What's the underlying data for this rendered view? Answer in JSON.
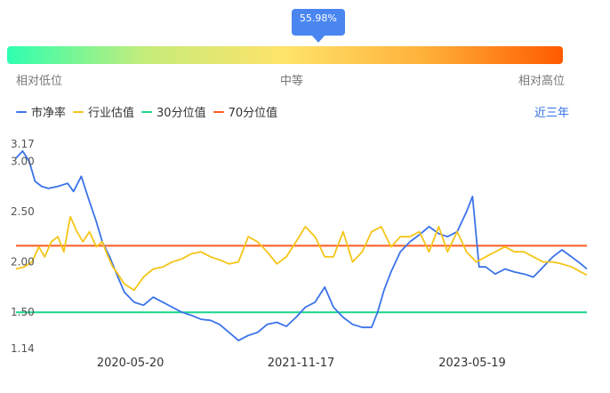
{
  "gauge": {
    "percentile_label": "55.98%",
    "percentile": 0.5598,
    "low_label": "相对低位",
    "mid_label": "中等",
    "high_label": "相对高位",
    "colors": [
      "#2effb0",
      "#c6ec7a",
      "#ffe36a",
      "#ffb13a",
      "#ff5a00"
    ]
  },
  "legend": {
    "items": [
      {
        "label": "市净率",
        "color": "#3b73e8"
      },
      {
        "label": "行业估值",
        "color": "#f5c518"
      },
      {
        "label": "30分位值",
        "color": "#19d68a"
      },
      {
        "label": "70分位值",
        "color": "#ff5a1f"
      }
    ]
  },
  "range_selector": {
    "label": "近三年"
  },
  "chart_data": {
    "type": "line",
    "x_ticks": [
      "2020-05-20",
      "2021-11-17",
      "2023-05-19"
    ],
    "x_range": [
      "2019-05-20",
      "2024-05-20"
    ],
    "y_ticks": [
      "3.17",
      "3.00",
      "2.50",
      "2.00",
      "1.50",
      "1.14"
    ],
    "ylim": [
      1.14,
      3.17
    ],
    "grid": false,
    "series": [
      {
        "name": "市净率",
        "color": "#3b73e8",
        "points": [
          [
            "2019-05-20",
            3.03
          ],
          [
            "2019-06-10",
            3.1
          ],
          [
            "2019-07-01",
            3.0
          ],
          [
            "2019-07-20",
            2.8
          ],
          [
            "2019-08-10",
            2.75
          ],
          [
            "2019-09-01",
            2.73
          ],
          [
            "2019-10-01",
            2.75
          ],
          [
            "2019-11-01",
            2.78
          ],
          [
            "2019-11-20",
            2.7
          ],
          [
            "2019-12-15",
            2.85
          ],
          [
            "2020-01-10",
            2.6
          ],
          [
            "2020-02-01",
            2.4
          ],
          [
            "2020-02-20",
            2.2
          ],
          [
            "2020-03-15",
            2.05
          ],
          [
            "2020-04-10",
            1.85
          ],
          [
            "2020-05-01",
            1.7
          ],
          [
            "2020-06-01",
            1.6
          ],
          [
            "2020-07-01",
            1.57
          ],
          [
            "2020-08-01",
            1.65
          ],
          [
            "2020-09-01",
            1.6
          ],
          [
            "2020-10-01",
            1.55
          ],
          [
            "2020-11-01",
            1.5
          ],
          [
            "2020-12-01",
            1.47
          ],
          [
            "2021-01-01",
            1.43
          ],
          [
            "2021-02-01",
            1.42
          ],
          [
            "2021-03-01",
            1.38
          ],
          [
            "2021-04-01",
            1.3
          ],
          [
            "2021-05-01",
            1.22
          ],
          [
            "2021-06-01",
            1.27
          ],
          [
            "2021-07-01",
            1.3
          ],
          [
            "2021-08-01",
            1.38
          ],
          [
            "2021-09-01",
            1.4
          ],
          [
            "2021-10-01",
            1.36
          ],
          [
            "2021-11-01",
            1.45
          ],
          [
            "2021-12-01",
            1.55
          ],
          [
            "2022-01-01",
            1.6
          ],
          [
            "2022-02-01",
            1.75
          ],
          [
            "2022-03-01",
            1.55
          ],
          [
            "2022-04-01",
            1.45
          ],
          [
            "2022-05-01",
            1.38
          ],
          [
            "2022-06-01",
            1.35
          ],
          [
            "2022-07-01",
            1.35
          ],
          [
            "2022-07-20",
            1.5
          ],
          [
            "2022-08-10",
            1.72
          ],
          [
            "2022-09-01",
            1.9
          ],
          [
            "2022-10-01",
            2.1
          ],
          [
            "2022-11-01",
            2.2
          ],
          [
            "2022-12-01",
            2.27
          ],
          [
            "2023-01-01",
            2.35
          ],
          [
            "2023-02-01",
            2.28
          ],
          [
            "2023-03-01",
            2.25
          ],
          [
            "2023-04-01",
            2.3
          ],
          [
            "2023-05-01",
            2.5
          ],
          [
            "2023-05-20",
            2.65
          ],
          [
            "2023-06-10",
            1.95
          ],
          [
            "2023-07-01",
            1.95
          ],
          [
            "2023-08-01",
            1.88
          ],
          [
            "2023-09-01",
            1.93
          ],
          [
            "2023-10-01",
            1.9
          ],
          [
            "2023-11-01",
            1.88
          ],
          [
            "2023-12-01",
            1.85
          ],
          [
            "2024-01-01",
            1.95
          ],
          [
            "2024-02-01",
            2.05
          ],
          [
            "2024-03-01",
            2.12
          ],
          [
            "2024-04-01",
            2.05
          ],
          [
            "2024-05-01",
            1.98
          ],
          [
            "2024-05-20",
            1.93
          ]
        ]
      },
      {
        "name": "行业估值",
        "color": "#f5c518",
        "points": [
          [
            "2019-05-20",
            1.93
          ],
          [
            "2019-06-15",
            1.95
          ],
          [
            "2019-07-10",
            2.0
          ],
          [
            "2019-08-01",
            2.15
          ],
          [
            "2019-08-20",
            2.05
          ],
          [
            "2019-09-10",
            2.2
          ],
          [
            "2019-10-01",
            2.25
          ],
          [
            "2019-10-20",
            2.1
          ],
          [
            "2019-11-10",
            2.45
          ],
          [
            "2019-12-01",
            2.3
          ],
          [
            "2019-12-20",
            2.2
          ],
          [
            "2020-01-10",
            2.3
          ],
          [
            "2020-02-01",
            2.15
          ],
          [
            "2020-02-20",
            2.2
          ],
          [
            "2020-03-10",
            2.05
          ],
          [
            "2020-03-25",
            1.95
          ],
          [
            "2020-04-10",
            1.88
          ],
          [
            "2020-05-01",
            1.78
          ],
          [
            "2020-06-01",
            1.72
          ],
          [
            "2020-07-01",
            1.85
          ],
          [
            "2020-08-01",
            1.93
          ],
          [
            "2020-09-01",
            1.95
          ],
          [
            "2020-10-01",
            2.0
          ],
          [
            "2020-11-01",
            2.03
          ],
          [
            "2020-12-01",
            2.08
          ],
          [
            "2021-01-01",
            2.1
          ],
          [
            "2021-02-01",
            2.05
          ],
          [
            "2021-03-01",
            2.02
          ],
          [
            "2021-04-01",
            1.98
          ],
          [
            "2021-05-01",
            2.0
          ],
          [
            "2021-06-01",
            2.25
          ],
          [
            "2021-07-01",
            2.2
          ],
          [
            "2021-08-01",
            2.1
          ],
          [
            "2021-09-01",
            1.98
          ],
          [
            "2021-10-01",
            2.05
          ],
          [
            "2021-11-01",
            2.2
          ],
          [
            "2021-12-01",
            2.35
          ],
          [
            "2022-01-01",
            2.25
          ],
          [
            "2022-02-01",
            2.05
          ],
          [
            "2022-03-01",
            2.05
          ],
          [
            "2022-04-01",
            2.3
          ],
          [
            "2022-05-01",
            2.0
          ],
          [
            "2022-06-01",
            2.1
          ],
          [
            "2022-07-01",
            2.3
          ],
          [
            "2022-08-01",
            2.35
          ],
          [
            "2022-09-01",
            2.15
          ],
          [
            "2022-10-01",
            2.25
          ],
          [
            "2022-11-01",
            2.25
          ],
          [
            "2022-12-01",
            2.3
          ],
          [
            "2023-01-01",
            2.1
          ],
          [
            "2023-02-01",
            2.35
          ],
          [
            "2023-03-01",
            2.1
          ],
          [
            "2023-04-01",
            2.3
          ],
          [
            "2023-05-01",
            2.1
          ],
          [
            "2023-06-01",
            2.0
          ],
          [
            "2023-07-01",
            2.05
          ],
          [
            "2023-08-01",
            2.1
          ],
          [
            "2023-09-01",
            2.15
          ],
          [
            "2023-10-01",
            2.1
          ],
          [
            "2023-11-01",
            2.1
          ],
          [
            "2023-12-01",
            2.05
          ],
          [
            "2024-01-01",
            2.0
          ],
          [
            "2024-02-01",
            2.0
          ],
          [
            "2024-03-01",
            1.98
          ],
          [
            "2024-04-01",
            1.95
          ],
          [
            "2024-05-01",
            1.9
          ],
          [
            "2024-05-20",
            1.87
          ]
        ]
      },
      {
        "name": "30分位值",
        "color": "#19d68a",
        "value": 1.5
      },
      {
        "name": "70分位值",
        "color": "#ff5a1f",
        "value": 2.16
      }
    ]
  }
}
